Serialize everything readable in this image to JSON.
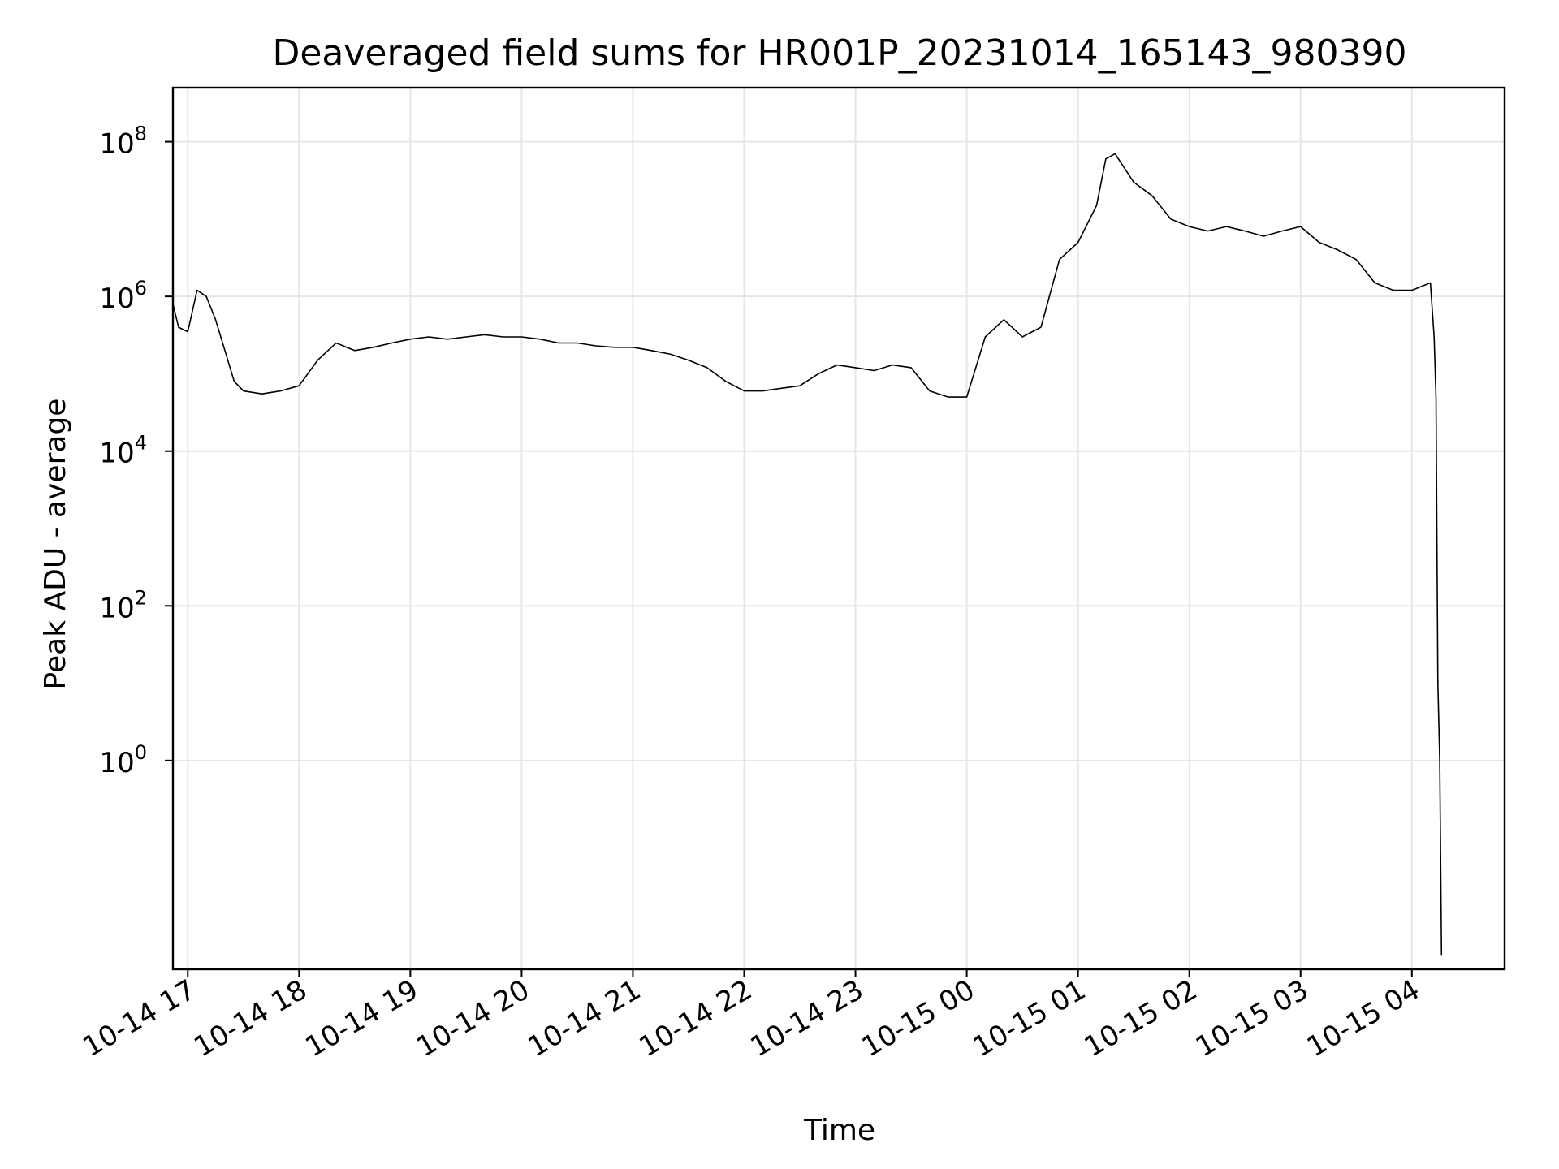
{
  "chart_data": {
    "type": "line",
    "title": "Deaveraged field sums for HR001P_20231014_165143_980390",
    "xlabel": "Time",
    "ylabel": "Peak ADU - average",
    "x_axis_type": "time",
    "x_range": [
      "2023-10-14 16:52",
      "2023-10-15 04:50"
    ],
    "y_scale": "log",
    "ylim": [
      0.002,
      500000000
    ],
    "grid": true,
    "line_color": "#000000",
    "x_ticks": [
      {
        "time": "2023-10-14 17:00",
        "label": "10-14 17"
      },
      {
        "time": "2023-10-14 18:00",
        "label": "10-14 18"
      },
      {
        "time": "2023-10-14 19:00",
        "label": "10-14 19"
      },
      {
        "time": "2023-10-14 20:00",
        "label": "10-14 20"
      },
      {
        "time": "2023-10-14 21:00",
        "label": "10-14 21"
      },
      {
        "time": "2023-10-14 22:00",
        "label": "10-14 22"
      },
      {
        "time": "2023-10-14 23:00",
        "label": "10-14 23"
      },
      {
        "time": "2023-10-15 00:00",
        "label": "10-15 00"
      },
      {
        "time": "2023-10-15 01:00",
        "label": "10-15 01"
      },
      {
        "time": "2023-10-15 02:00",
        "label": "10-15 02"
      },
      {
        "time": "2023-10-15 03:00",
        "label": "10-15 03"
      },
      {
        "time": "2023-10-15 04:00",
        "label": "10-15 04"
      }
    ],
    "y_ticks": [
      {
        "value": 1,
        "base": "10",
        "exp": "0"
      },
      {
        "value": 100,
        "base": "10",
        "exp": "2"
      },
      {
        "value": 10000,
        "base": "10",
        "exp": "4"
      },
      {
        "value": 1000000,
        "base": "10",
        "exp": "6"
      },
      {
        "value": 100000000,
        "base": "10",
        "exp": "8"
      }
    ],
    "series": [
      {
        "points": [
          [
            "2023-10-14 16:52",
            800000
          ],
          [
            "2023-10-14 16:55",
            400000
          ],
          [
            "2023-10-14 17:00",
            350000
          ],
          [
            "2023-10-14 17:05",
            1200000
          ],
          [
            "2023-10-14 17:10",
            1000000
          ],
          [
            "2023-10-14 17:15",
            500000
          ],
          [
            "2023-10-14 17:20",
            200000
          ],
          [
            "2023-10-14 17:25",
            80000
          ],
          [
            "2023-10-14 17:30",
            60000
          ],
          [
            "2023-10-14 17:40",
            55000
          ],
          [
            "2023-10-14 17:50",
            60000
          ],
          [
            "2023-10-14 18:00",
            70000
          ],
          [
            "2023-10-14 18:10",
            150000
          ],
          [
            "2023-10-14 18:20",
            250000
          ],
          [
            "2023-10-14 18:30",
            200000
          ],
          [
            "2023-10-14 18:40",
            220000
          ],
          [
            "2023-10-14 18:50",
            250000
          ],
          [
            "2023-10-14 19:00",
            280000
          ],
          [
            "2023-10-14 19:10",
            300000
          ],
          [
            "2023-10-14 19:20",
            280000
          ],
          [
            "2023-10-14 19:30",
            300000
          ],
          [
            "2023-10-14 19:40",
            320000
          ],
          [
            "2023-10-14 19:50",
            300000
          ],
          [
            "2023-10-14 20:00",
            300000
          ],
          [
            "2023-10-14 20:10",
            280000
          ],
          [
            "2023-10-14 20:20",
            250000
          ],
          [
            "2023-10-14 20:30",
            250000
          ],
          [
            "2023-10-14 20:40",
            230000
          ],
          [
            "2023-10-14 20:50",
            220000
          ],
          [
            "2023-10-14 21:00",
            220000
          ],
          [
            "2023-10-14 21:10",
            200000
          ],
          [
            "2023-10-14 21:20",
            180000
          ],
          [
            "2023-10-14 21:30",
            150000
          ],
          [
            "2023-10-14 21:40",
            120000
          ],
          [
            "2023-10-14 21:50",
            80000
          ],
          [
            "2023-10-14 22:00",
            60000
          ],
          [
            "2023-10-14 22:10",
            60000
          ],
          [
            "2023-10-14 22:20",
            65000
          ],
          [
            "2023-10-14 22:30",
            70000
          ],
          [
            "2023-10-14 22:40",
            100000
          ],
          [
            "2023-10-14 22:50",
            130000
          ],
          [
            "2023-10-14 23:00",
            120000
          ],
          [
            "2023-10-14 23:10",
            110000
          ],
          [
            "2023-10-14 23:20",
            130000
          ],
          [
            "2023-10-14 23:30",
            120000
          ],
          [
            "2023-10-14 23:40",
            60000
          ],
          [
            "2023-10-14 23:50",
            50000
          ],
          [
            "2023-10-15 00:00",
            50000
          ],
          [
            "2023-10-15 00:10",
            300000
          ],
          [
            "2023-10-15 00:20",
            500000
          ],
          [
            "2023-10-15 00:30",
            300000
          ],
          [
            "2023-10-15 00:40",
            400000
          ],
          [
            "2023-10-15 00:50",
            3000000
          ],
          [
            "2023-10-15 01:00",
            5000000
          ],
          [
            "2023-10-15 01:10",
            15000000
          ],
          [
            "2023-10-15 01:15",
            60000000
          ],
          [
            "2023-10-15 01:20",
            70000000
          ],
          [
            "2023-10-15 01:30",
            30000000
          ],
          [
            "2023-10-15 01:40",
            20000000
          ],
          [
            "2023-10-15 01:50",
            10000000
          ],
          [
            "2023-10-15 02:00",
            8000000
          ],
          [
            "2023-10-15 02:10",
            7000000
          ],
          [
            "2023-10-15 02:20",
            8000000
          ],
          [
            "2023-10-15 02:30",
            7000000
          ],
          [
            "2023-10-15 02:40",
            6000000
          ],
          [
            "2023-10-15 02:50",
            7000000
          ],
          [
            "2023-10-15 03:00",
            8000000
          ],
          [
            "2023-10-15 03:10",
            5000000
          ],
          [
            "2023-10-15 03:20",
            4000000
          ],
          [
            "2023-10-15 03:30",
            3000000
          ],
          [
            "2023-10-15 03:40",
            1500000
          ],
          [
            "2023-10-15 03:50",
            1200000
          ],
          [
            "2023-10-15 04:00",
            1200000
          ],
          [
            "2023-10-15 04:10",
            1500000
          ],
          [
            "2023-10-15 04:12",
            300000
          ],
          [
            "2023-10-15 04:13",
            50000
          ],
          [
            "2023-10-15 04:14",
            10
          ],
          [
            "2023-10-15 04:15",
            1
          ],
          [
            "2023-10-15 04:16",
            0.003
          ]
        ]
      }
    ]
  }
}
